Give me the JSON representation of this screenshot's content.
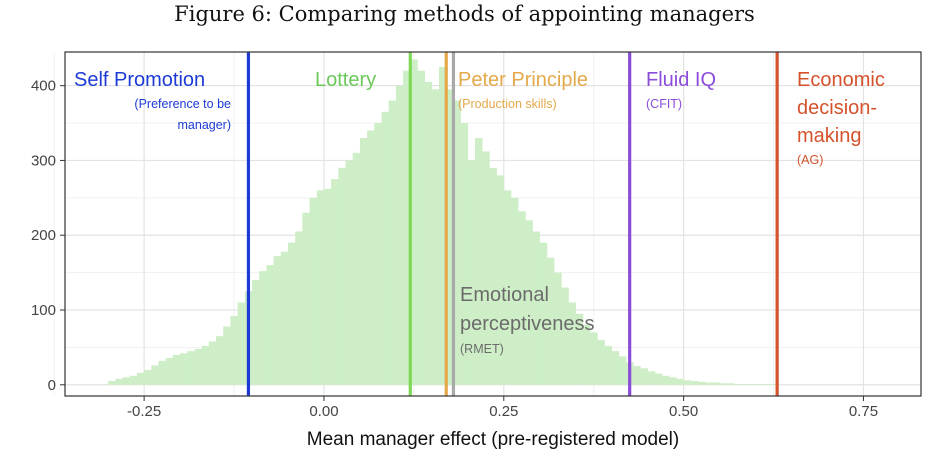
{
  "caption": "Figure 6: Comparing methods of appointing managers",
  "chart_data": {
    "type": "bar",
    "subtype": "histogram",
    "xlabel": "Mean manager effect (pre-registered model)",
    "ylabel": "",
    "xlim": [
      -0.36,
      0.83
    ],
    "ylim": [
      -15,
      445
    ],
    "x_ticks": [
      -0.25,
      0.0,
      0.25,
      0.5,
      0.75
    ],
    "x_tick_labels": [
      "-0.25",
      "0.00",
      "0.25",
      "0.50",
      "0.75"
    ],
    "y_ticks": [
      0,
      100,
      200,
      300,
      400
    ],
    "y_tick_labels": [
      "0",
      "100",
      "200",
      "300",
      "400"
    ],
    "grid": true,
    "histogram": {
      "bin_width": 0.01,
      "bin_start": -0.3,
      "bar_color": "#cdeec6",
      "counts": [
        5,
        8,
        10,
        12,
        16,
        20,
        26,
        32,
        36,
        40,
        42,
        45,
        48,
        52,
        58,
        65,
        78,
        92,
        110,
        125,
        140,
        152,
        160,
        172,
        178,
        190,
        205,
        230,
        250,
        260,
        262,
        275,
        290,
        300,
        310,
        330,
        340,
        350,
        365,
        380,
        400,
        420,
        435,
        420,
        405,
        395,
        425,
        395,
        380,
        350,
        300,
        330,
        312,
        290,
        280,
        260,
        250,
        232,
        220,
        205,
        190,
        170,
        150,
        130,
        110,
        95,
        80,
        70,
        60,
        52,
        45,
        38,
        30,
        25,
        22,
        18,
        15,
        12,
        10,
        8,
        6,
        5,
        4,
        3,
        3,
        2,
        2,
        1,
        1,
        1,
        1,
        1,
        1
      ]
    },
    "reference_lines": [
      {
        "x": -0.105,
        "color": "#1c3bd6",
        "label": "Self Promotion",
        "sublabel": "(Preference to be manager)"
      },
      {
        "x": 0.12,
        "color": "#7ed957",
        "label": "Lottery",
        "sublabel": ""
      },
      {
        "x": 0.17,
        "color": "#e3a94a",
        "label": "Peter Principle",
        "sublabel": "(Production skills)"
      },
      {
        "x": 0.18,
        "color": "#a9a9a9",
        "label": "Emotional perceptiveness",
        "sublabel": "(RMET)"
      },
      {
        "x": 0.425,
        "color": "#8a4cd9",
        "label": "Fluid IQ",
        "sublabel": "(CFIT)"
      },
      {
        "x": 0.63,
        "color": "#d4522c",
        "label": "Economic decision-making",
        "sublabel": "(AG)"
      }
    ],
    "annotations": {
      "self_promotion": {
        "title": "Self Promotion",
        "sub_line1": "(Preference to be",
        "sub_line2": "manager)"
      },
      "lottery": {
        "title": "Lottery"
      },
      "peter": {
        "title": "Peter Principle",
        "sub": "(Production skills)"
      },
      "fluid": {
        "title": "Fluid IQ",
        "sub": "(CFIT)"
      },
      "econ": {
        "line1": "Economic",
        "line2": "decision-",
        "line3": "making",
        "sub": "(AG)"
      },
      "emotional": {
        "line1": "Emotional",
        "line2": "perceptiveness",
        "sub": "(RMET)"
      }
    }
  }
}
